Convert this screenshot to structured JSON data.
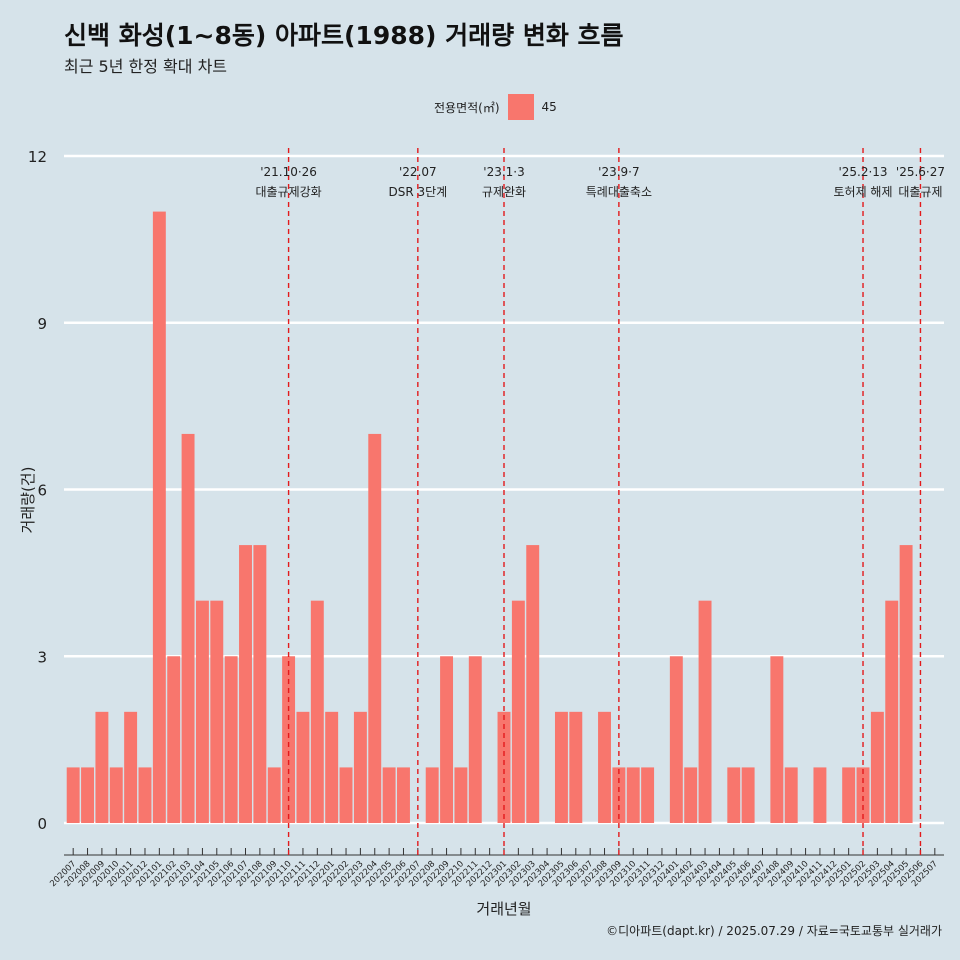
{
  "title": "신백 화성(1~8동) 아파트(1988) 거래량 변화 흐름",
  "subtitle": "최근 5년 한정 확대 차트",
  "caption": "©디아파트(dapt.kr) / 2025.07.29 / 자료=국토교통부 실거래가",
  "legend": {
    "title": "전용면적(㎡)",
    "items": [
      {
        "label": "45",
        "color": "#f8766d"
      }
    ]
  },
  "chart_data": {
    "type": "bar",
    "xlabel": "거래년월",
    "ylabel": "거래량(건)",
    "ylim": [
      0,
      12
    ],
    "yticks": [
      0,
      3,
      6,
      9,
      12
    ],
    "categories": [
      "202007",
      "202008",
      "202009",
      "202010",
      "202011",
      "202012",
      "202101",
      "202102",
      "202103",
      "202104",
      "202105",
      "202106",
      "202107",
      "202108",
      "202109",
      "202110",
      "202111",
      "202112",
      "202201",
      "202202",
      "202203",
      "202204",
      "202205",
      "202206",
      "202207",
      "202208",
      "202209",
      "202210",
      "202211",
      "202212",
      "202301",
      "202302",
      "202303",
      "202304",
      "202305",
      "202306",
      "202307",
      "202308",
      "202309",
      "202310",
      "202311",
      "202312",
      "202401",
      "202402",
      "202403",
      "202404",
      "202405",
      "202406",
      "202407",
      "202408",
      "202409",
      "202410",
      "202411",
      "202412",
      "202501",
      "202502",
      "202503",
      "202504",
      "202505",
      "202506",
      "202507"
    ],
    "series": [
      {
        "name": "45",
        "color": "#f8766d",
        "values": [
          1,
          1,
          2,
          1,
          2,
          1,
          11,
          3,
          7,
          4,
          4,
          3,
          5,
          5,
          1,
          3,
          2,
          4,
          2,
          1,
          2,
          7,
          1,
          1,
          0,
          1,
          3,
          1,
          3,
          0,
          2,
          4,
          5,
          0,
          2,
          2,
          0,
          2,
          1,
          1,
          1,
          0,
          3,
          1,
          4,
          0,
          1,
          1,
          0,
          3,
          1,
          0,
          1,
          0,
          1,
          1,
          2,
          4,
          5,
          0,
          0
        ]
      }
    ],
    "events": [
      {
        "category": "202110",
        "date": "'21.10·26",
        "label": "대출규제강화"
      },
      {
        "category": "202207",
        "date": "'22.07",
        "label": "DSR 3단계"
      },
      {
        "category": "202301",
        "date": "'23.1·3",
        "label": "규제완화"
      },
      {
        "category": "202309",
        "date": "'23.9·7",
        "label": "특례대출축소"
      },
      {
        "category": "202502",
        "date": "'25.2·13",
        "label": "토허제 해제"
      },
      {
        "category": "202506",
        "date": "'25.6·27",
        "label": "대출규제"
      }
    ],
    "grid": true,
    "legend_position": "top",
    "event_line_color": "#e31a1c"
  }
}
